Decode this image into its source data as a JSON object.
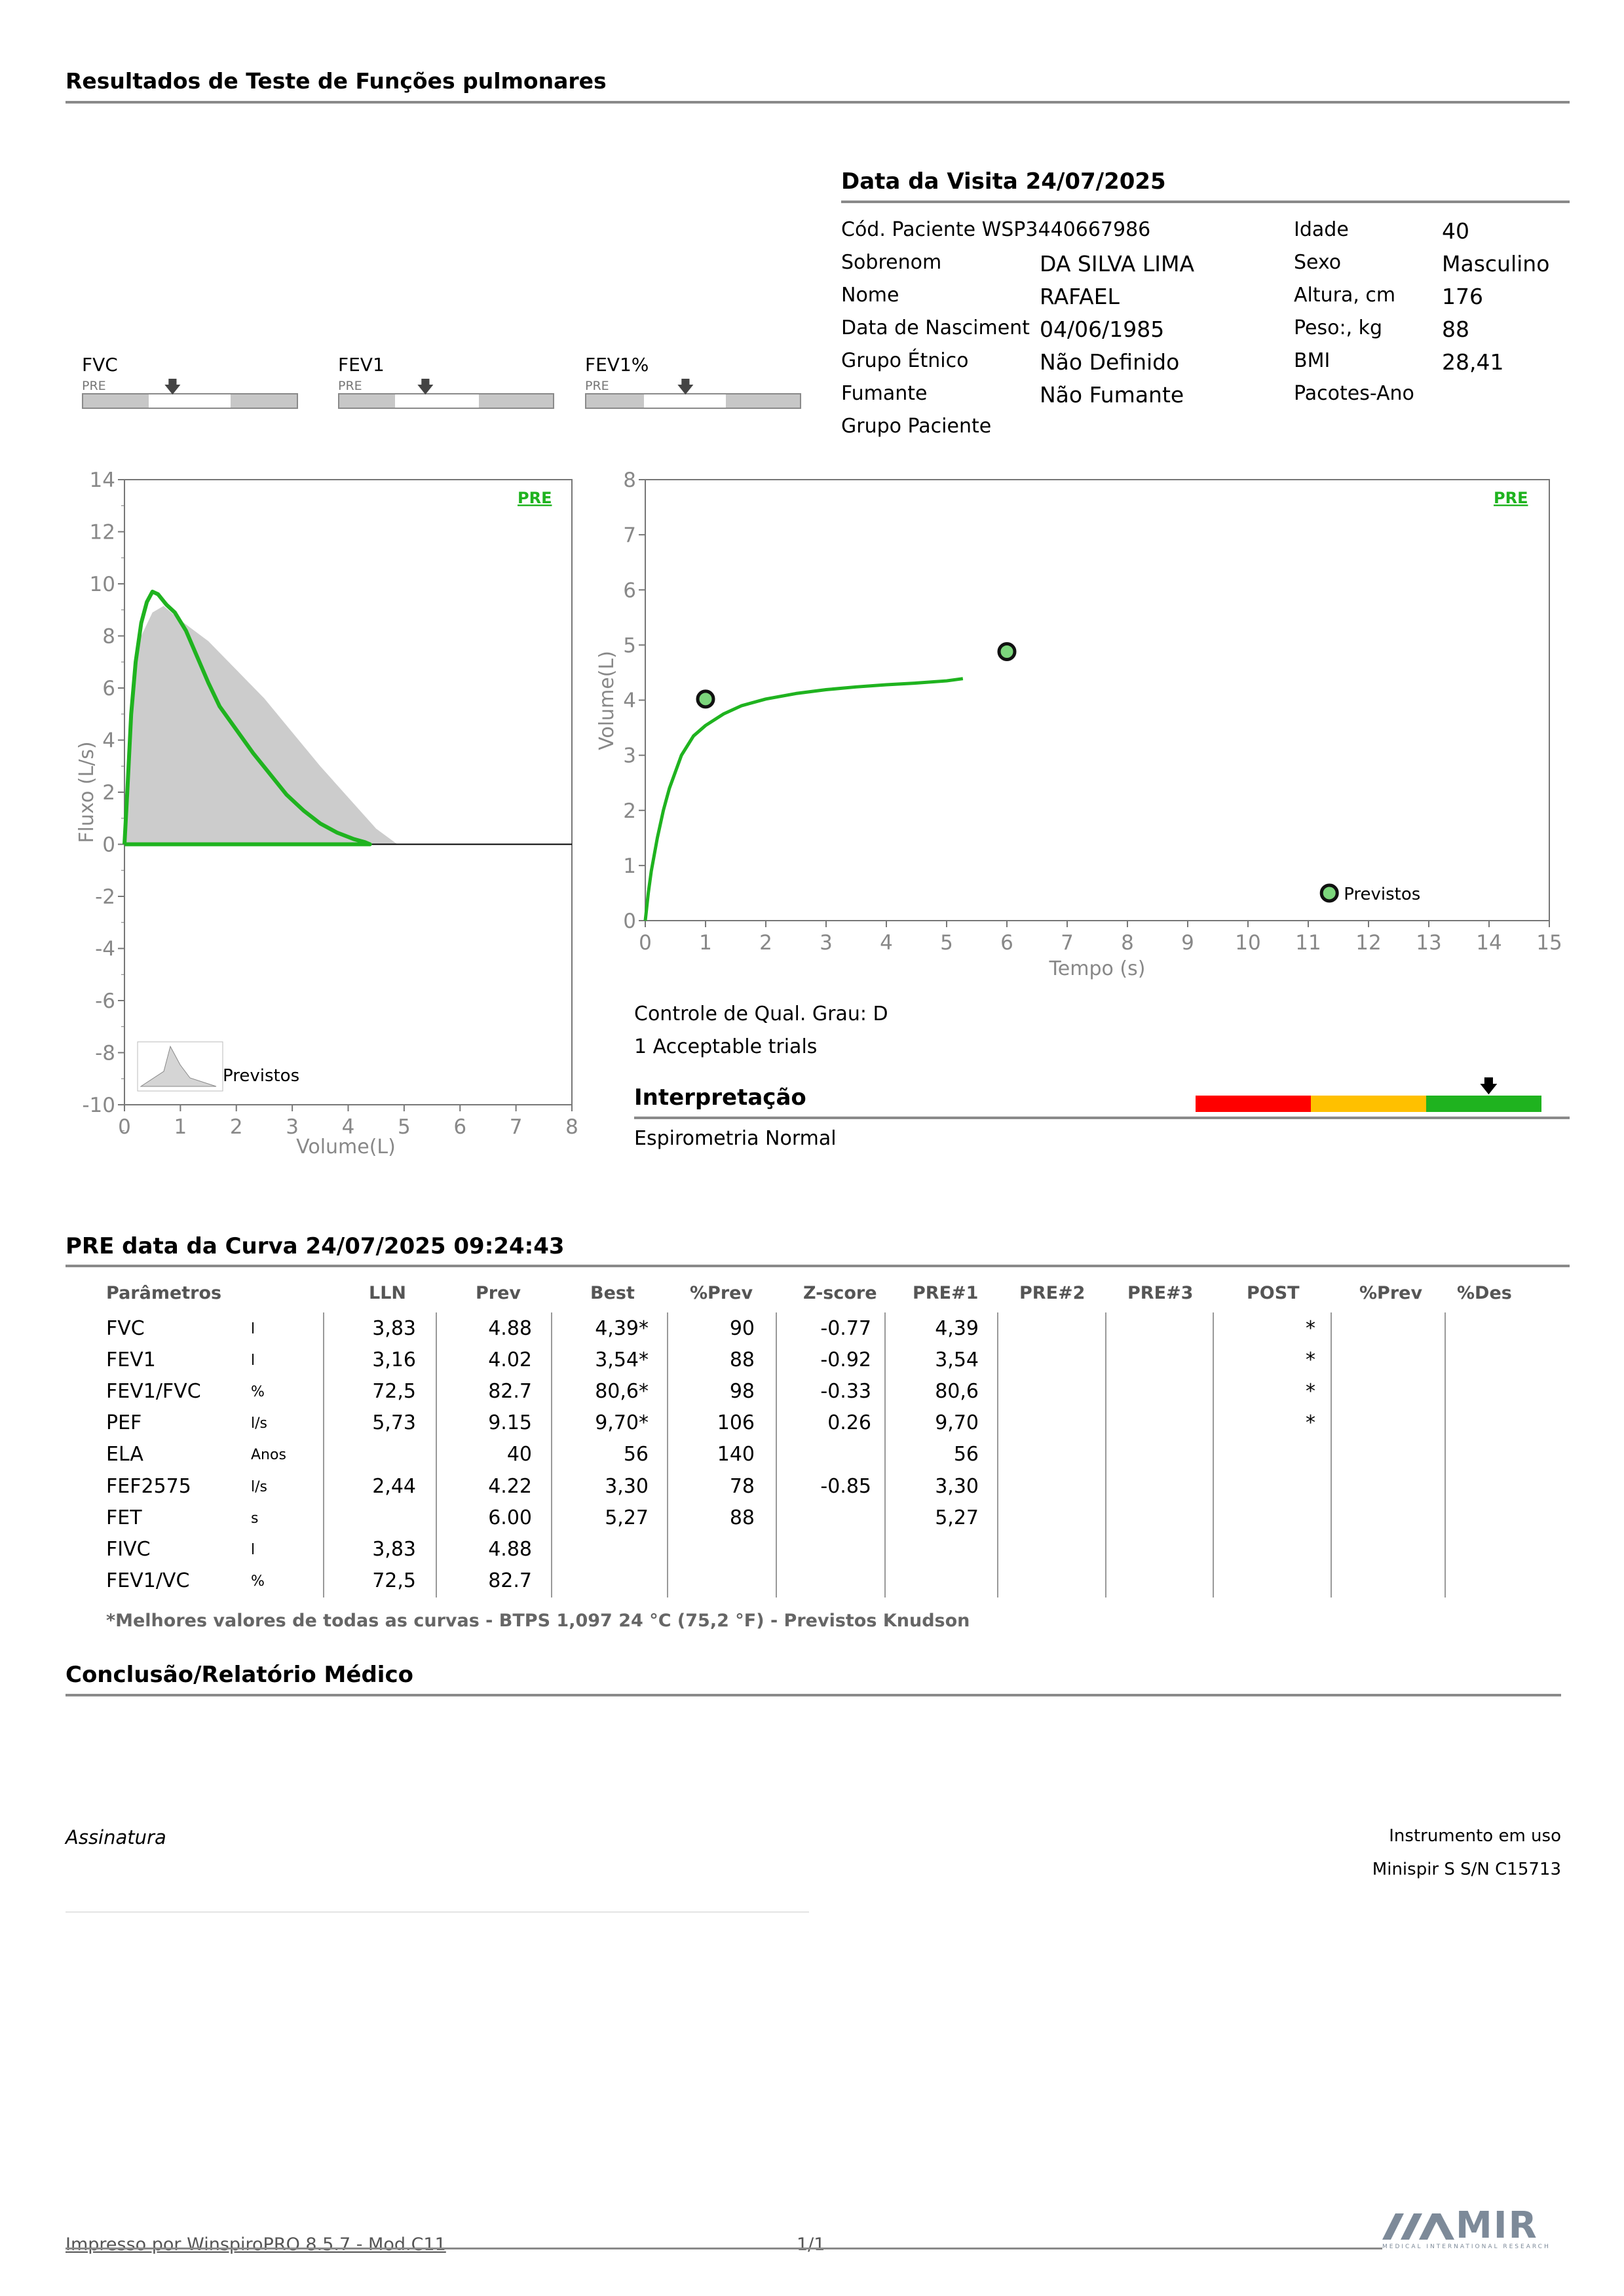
{
  "header": {
    "title": "Resultados de Teste de Funções pulmonares"
  },
  "visit": {
    "title": "Data da Visita 24/07/2025",
    "patient_code_label": "Cód. Paciente WSP3440667986",
    "surname_label": "Sobrenom",
    "surname": "DA  SILVA LIMA",
    "name_label": "Nome",
    "name": "RAFAEL",
    "birth_label": "Data de Nasciment",
    "birth": "04/06/1985",
    "ethnic_label": "Grupo Étnico",
    "ethnic": "Não Definido",
    "smoker_label": "Fumante",
    "smoker": "Não Fumante",
    "patient_group_label": "Grupo Paciente",
    "age_label": "Idade",
    "age": "40",
    "sex_label": "Sexo",
    "sex": "Masculino",
    "height_label": "Altura, cm",
    "height": "176",
    "weight_label": "Peso:, kg",
    "weight": "88",
    "bmi_label": "BMI",
    "bmi": "28,41",
    "packs_label": "Pacotes-Ano"
  },
  "indicators": [
    {
      "label": "FVC",
      "tag": "PRE"
    },
    {
      "label": "FEV1",
      "tag": "PRE"
    },
    {
      "label": "FEV1%",
      "tag": "PRE"
    }
  ],
  "chart_data": [
    {
      "type": "line",
      "name": "flow-volume",
      "tag": "PRE",
      "xlabel": "Volume(L)",
      "ylabel": "Fluxo (L/s)",
      "xlim": [
        0,
        8
      ],
      "ylim": [
        -10,
        14
      ],
      "xticks": [
        "0",
        "1",
        "2",
        "3",
        "4",
        "5",
        "6",
        "7",
        "8"
      ],
      "yticks": [
        "14",
        "12",
        "10",
        "8",
        "6",
        "4",
        "2",
        "0",
        "-2",
        "-4",
        "-6",
        "-8",
        "-10"
      ],
      "predicted_label": "Previstos",
      "series": [
        {
          "name": "Previstos",
          "kind": "area",
          "color": "#cccccc",
          "x": [
            0,
            0.1,
            0.3,
            0.5,
            0.7,
            1.0,
            1.5,
            2.0,
            2.5,
            3.0,
            3.5,
            4.0,
            4.5,
            4.88
          ],
          "y": [
            0,
            5.0,
            8.0,
            8.9,
            9.15,
            8.6,
            7.8,
            6.7,
            5.6,
            4.3,
            3.0,
            1.8,
            0.6,
            0
          ]
        },
        {
          "name": "PRE",
          "kind": "line",
          "color": "#1fb31f",
          "x": [
            0,
            0.05,
            0.12,
            0.2,
            0.3,
            0.4,
            0.5,
            0.6,
            0.75,
            0.9,
            1.1,
            1.3,
            1.5,
            1.7,
            2.0,
            2.3,
            2.6,
            2.9,
            3.2,
            3.5,
            3.8,
            4.1,
            4.3,
            4.39,
            4.2,
            3.0,
            1.5,
            0.3,
            0
          ],
          "y": [
            0,
            2.0,
            5.0,
            7.0,
            8.5,
            9.3,
            9.7,
            9.6,
            9.2,
            8.9,
            8.2,
            7.2,
            6.2,
            5.3,
            4.4,
            3.5,
            2.7,
            1.9,
            1.3,
            0.8,
            0.45,
            0.2,
            0.08,
            0,
            0,
            0,
            0,
            0,
            0
          ]
        }
      ]
    },
    {
      "type": "line",
      "name": "volume-time",
      "tag": "PRE",
      "xlabel": "Tempo (s)",
      "ylabel": "Volume(L)",
      "xlim": [
        0,
        15
      ],
      "ylim": [
        0,
        8
      ],
      "xticks": [
        "0",
        "1",
        "2",
        "3",
        "4",
        "5",
        "6",
        "7",
        "8",
        "9",
        "10",
        "11",
        "12",
        "13",
        "14",
        "15"
      ],
      "yticks": [
        "8",
        "7",
        "6",
        "5",
        "4",
        "3",
        "2",
        "1",
        "0"
      ],
      "predicted_label": "Previstos",
      "series": [
        {
          "name": "PRE",
          "kind": "line",
          "color": "#1fb31f",
          "x": [
            0,
            0.05,
            0.1,
            0.2,
            0.3,
            0.4,
            0.5,
            0.6,
            0.8,
            1.0,
            1.3,
            1.6,
            2.0,
            2.5,
            3.0,
            3.5,
            4.0,
            4.5,
            5.0,
            5.27
          ],
          "y": [
            0,
            0.5,
            0.9,
            1.5,
            2.0,
            2.4,
            2.7,
            3.0,
            3.35,
            3.54,
            3.75,
            3.9,
            4.02,
            4.12,
            4.19,
            4.24,
            4.28,
            4.31,
            4.35,
            4.39
          ]
        },
        {
          "name": "Previstos",
          "kind": "points",
          "x": [
            1.0,
            6.0,
            11.35
          ],
          "y": [
            4.02,
            4.88,
            0.5
          ]
        }
      ]
    }
  ],
  "quality": {
    "grade": "Controle de Qual. Grau: D",
    "trials": "1 Acceptable trials"
  },
  "interpretation": {
    "title": "Interpretação",
    "text": "Espirometria Normal",
    "scale_colors": [
      "#ff0000",
      "#ffc000",
      "#1fb31f"
    ]
  },
  "results": {
    "title": "PRE data da Curva 24/07/2025   09:24:43",
    "columns": [
      "Parâmetros",
      "LLN",
      "Prev",
      "Best",
      "%Prev",
      "Z-score",
      "PRE#1",
      "PRE#2",
      "PRE#3",
      "POST",
      "%Prev",
      "%Des"
    ],
    "rows": [
      {
        "param": "FVC",
        "unit": "l",
        "lln": "3,83",
        "prev": "4.88",
        "best": "4,39*",
        "pprev": "90",
        "z": "-0.77",
        "pre1": "4,39",
        "post": "*"
      },
      {
        "param": "FEV1",
        "unit": "l",
        "lln": "3,16",
        "prev": "4.02",
        "best": "3,54*",
        "pprev": "88",
        "z": "-0.92",
        "pre1": "3,54",
        "post": "*"
      },
      {
        "param": "FEV1/FVC",
        "unit": "%",
        "lln": "72,5",
        "prev": "82.7",
        "best": "80,6*",
        "pprev": "98",
        "z": "-0.33",
        "pre1": "80,6",
        "post": "*"
      },
      {
        "param": "PEF",
        "unit": "l/s",
        "lln": "5,73",
        "prev": "9.15",
        "best": "9,70*",
        "pprev": "106",
        "z": "0.26",
        "pre1": "9,70",
        "post": "*"
      },
      {
        "param": "ELA",
        "unit": "Anos",
        "lln": "",
        "prev": "40",
        "best": "56",
        "pprev": "140",
        "z": "",
        "pre1": "56",
        "post": ""
      },
      {
        "param": "FEF2575",
        "unit": "l/s",
        "lln": "2,44",
        "prev": "4.22",
        "best": "3,30",
        "pprev": "78",
        "z": "-0.85",
        "pre1": "3,30",
        "post": ""
      },
      {
        "param": "FET",
        "unit": "s",
        "lln": "",
        "prev": "6.00",
        "best": "5,27",
        "pprev": "88",
        "z": "",
        "pre1": "5,27",
        "post": ""
      },
      {
        "param": "FIVC",
        "unit": "l",
        "lln": "3,83",
        "prev": "4.88",
        "best": "",
        "pprev": "",
        "z": "",
        "pre1": "",
        "post": ""
      },
      {
        "param": "FEV1/VC",
        "unit": "%",
        "lln": "72,5",
        "prev": "82.7",
        "best": "",
        "pprev": "",
        "z": "",
        "pre1": "",
        "post": ""
      }
    ],
    "footnote": "*Melhores valores de todas as curvas - BTPS  1,097  24 °C  (75,2 °F) - Previstos Knudson"
  },
  "conclusion": {
    "title": "Conclusão/Relatório Médico"
  },
  "signature": {
    "label": "Assinatura"
  },
  "instrument": {
    "label": "Instrumento em uso",
    "value": "Minispir S S/N C15713"
  },
  "footer": {
    "printed_by": "Impresso por WinspiroPRO  8.5.7 - Mod.C11",
    "page": "1/1",
    "logo_text": "MIR",
    "logo_subtext": "MEDICAL INTERNATIONAL RESEARCH"
  }
}
